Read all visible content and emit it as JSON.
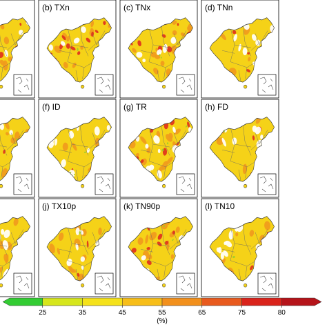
{
  "figure": {
    "panels": [
      {
        "id": "a",
        "label": ""
      },
      {
        "id": "b",
        "label": "(b) TXn"
      },
      {
        "id": "c",
        "label": "(c) TNx"
      },
      {
        "id": "d",
        "label": "(d) TNn"
      },
      {
        "id": "e",
        "label": ""
      },
      {
        "id": "f",
        "label": "(f) ID"
      },
      {
        "id": "g",
        "label": "(g) TR"
      },
      {
        "id": "h",
        "label": "(h) FD"
      },
      {
        "id": "i",
        "label": ""
      },
      {
        "id": "j",
        "label": "(j) TX10p"
      },
      {
        "id": "k",
        "label": "(k) TN90p"
      },
      {
        "id": "l",
        "label": "(l) TN10"
      }
    ],
    "colorbar": {
      "ticks": [
        "25",
        "35",
        "45",
        "55",
        "65",
        "75",
        "80"
      ],
      "unit": "(%)",
      "colors": [
        "#33cc33",
        "#d6e61c",
        "#f5e21a",
        "#f7be19",
        "#f2901c",
        "#e85a1e",
        "#d9231b",
        "#b5141a"
      ]
    },
    "land_colors": {
      "base": "#f5d218",
      "orange": "#f09a1d",
      "red": "#e0321c",
      "white": "#ffffff",
      "green": "#9ccc2a"
    }
  }
}
